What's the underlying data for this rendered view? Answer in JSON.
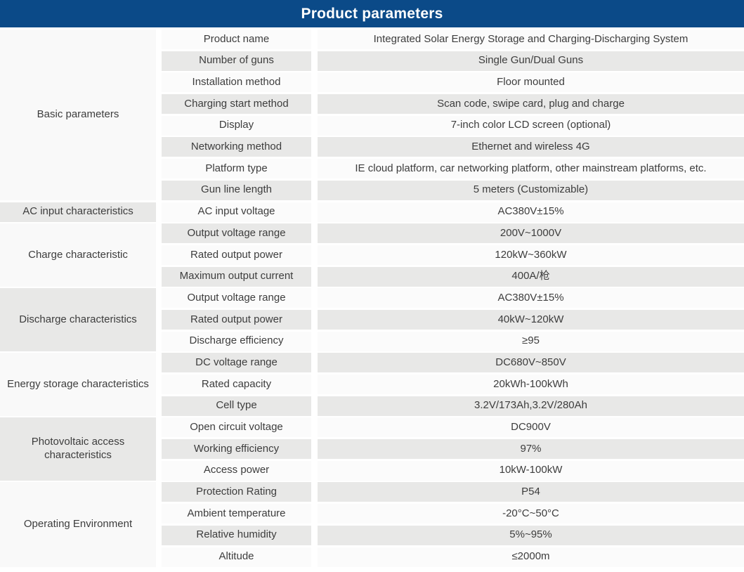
{
  "header": {
    "title": "Product parameters"
  },
  "colors": {
    "header_bg": "#0b4a88",
    "header_text": "#ffffff",
    "row_light": "#fbfbfb",
    "row_gray": "#e8e8e7",
    "category_light": "#f9f9f9",
    "text": "#3d3d3d",
    "page_bg": "#ffffff"
  },
  "table": {
    "groups": [
      {
        "category": "Basic parameters",
        "rows": [
          {
            "param": "Product name",
            "value": "Integrated Solar Energy Storage and Charging-Discharging System"
          },
          {
            "param": "Number of guns",
            "value": "Single Gun/Dual Guns"
          },
          {
            "param": "Installation method",
            "value": "Floor mounted"
          },
          {
            "param": "Charging start method",
            "value": "Scan code, swipe card, plug and charge"
          },
          {
            "param": "Display",
            "value": "7-inch color LCD screen (optional)"
          },
          {
            "param": "Networking method",
            "value": "Ethernet and wireless 4G"
          },
          {
            "param": "Platform type",
            "value": "IE cloud platform, car networking platform, other mainstream platforms, etc."
          },
          {
            "param": "Gun line length",
            "value": "5 meters (Customizable)"
          }
        ]
      },
      {
        "category": "AC input characteristics",
        "rows": [
          {
            "param": "AC input voltage",
            "value": "AC380V±15%"
          }
        ]
      },
      {
        "category": "Charge characteristic",
        "rows": [
          {
            "param": "Output voltage range",
            "value": "200V~1000V"
          },
          {
            "param": "Rated output power",
            "value": "120kW~360kW"
          },
          {
            "param": "Maximum output current",
            "value": "400A/枪"
          }
        ]
      },
      {
        "category": "Discharge characteristics",
        "rows": [
          {
            "param": "Output voltage range",
            "value": "AC380V±15%"
          },
          {
            "param": "Rated output power",
            "value": "40kW~120kW"
          },
          {
            "param": "Discharge efficiency",
            "value": "≥95"
          }
        ]
      },
      {
        "category": "Energy storage characteristics",
        "rows": [
          {
            "param": "DC voltage range",
            "value": "DC680V~850V"
          },
          {
            "param": "Rated capacity",
            "value": "20kWh-100kWh"
          },
          {
            "param": "Cell type",
            "value": "3.2V/173Ah,3.2V/280Ah"
          }
        ]
      },
      {
        "category": "Photovoltaic access characteristics",
        "rows": [
          {
            "param": "Open circuit voltage",
            "value": "DC900V"
          },
          {
            "param": "Working efficiency",
            "value": "97%"
          },
          {
            "param": "Access power",
            "value": "10kW-100kW"
          }
        ]
      },
      {
        "category": "Operating Environment",
        "rows": [
          {
            "param": "Protection Rating",
            "value": "P54"
          },
          {
            "param": "Ambient temperature",
            "value": "-20°C~50°C"
          },
          {
            "param": "Relative humidity",
            "value": "5%~95%"
          },
          {
            "param": "Altitude",
            "value": "≤2000m"
          }
        ]
      }
    ]
  }
}
